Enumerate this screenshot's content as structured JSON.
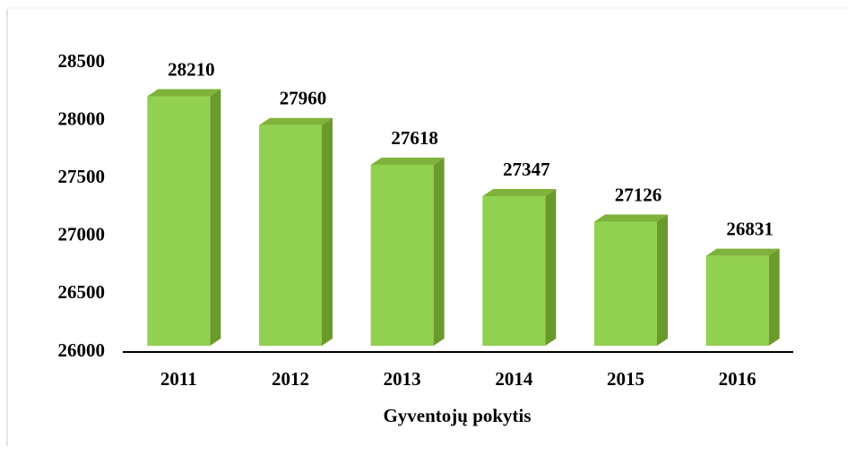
{
  "chart_data": {
    "type": "bar3d",
    "xlabel": "Gyventojų pokytis",
    "categories": [
      "2011",
      "2012",
      "2013",
      "2014",
      "2015",
      "2016"
    ],
    "values": [
      28210,
      27960,
      27618,
      27347,
      27126,
      26831
    ],
    "color": "#92d050",
    "ylim": [
      26000,
      28500
    ],
    "yticks": [
      26000,
      26500,
      27000,
      27500,
      28000,
      28500
    ]
  }
}
